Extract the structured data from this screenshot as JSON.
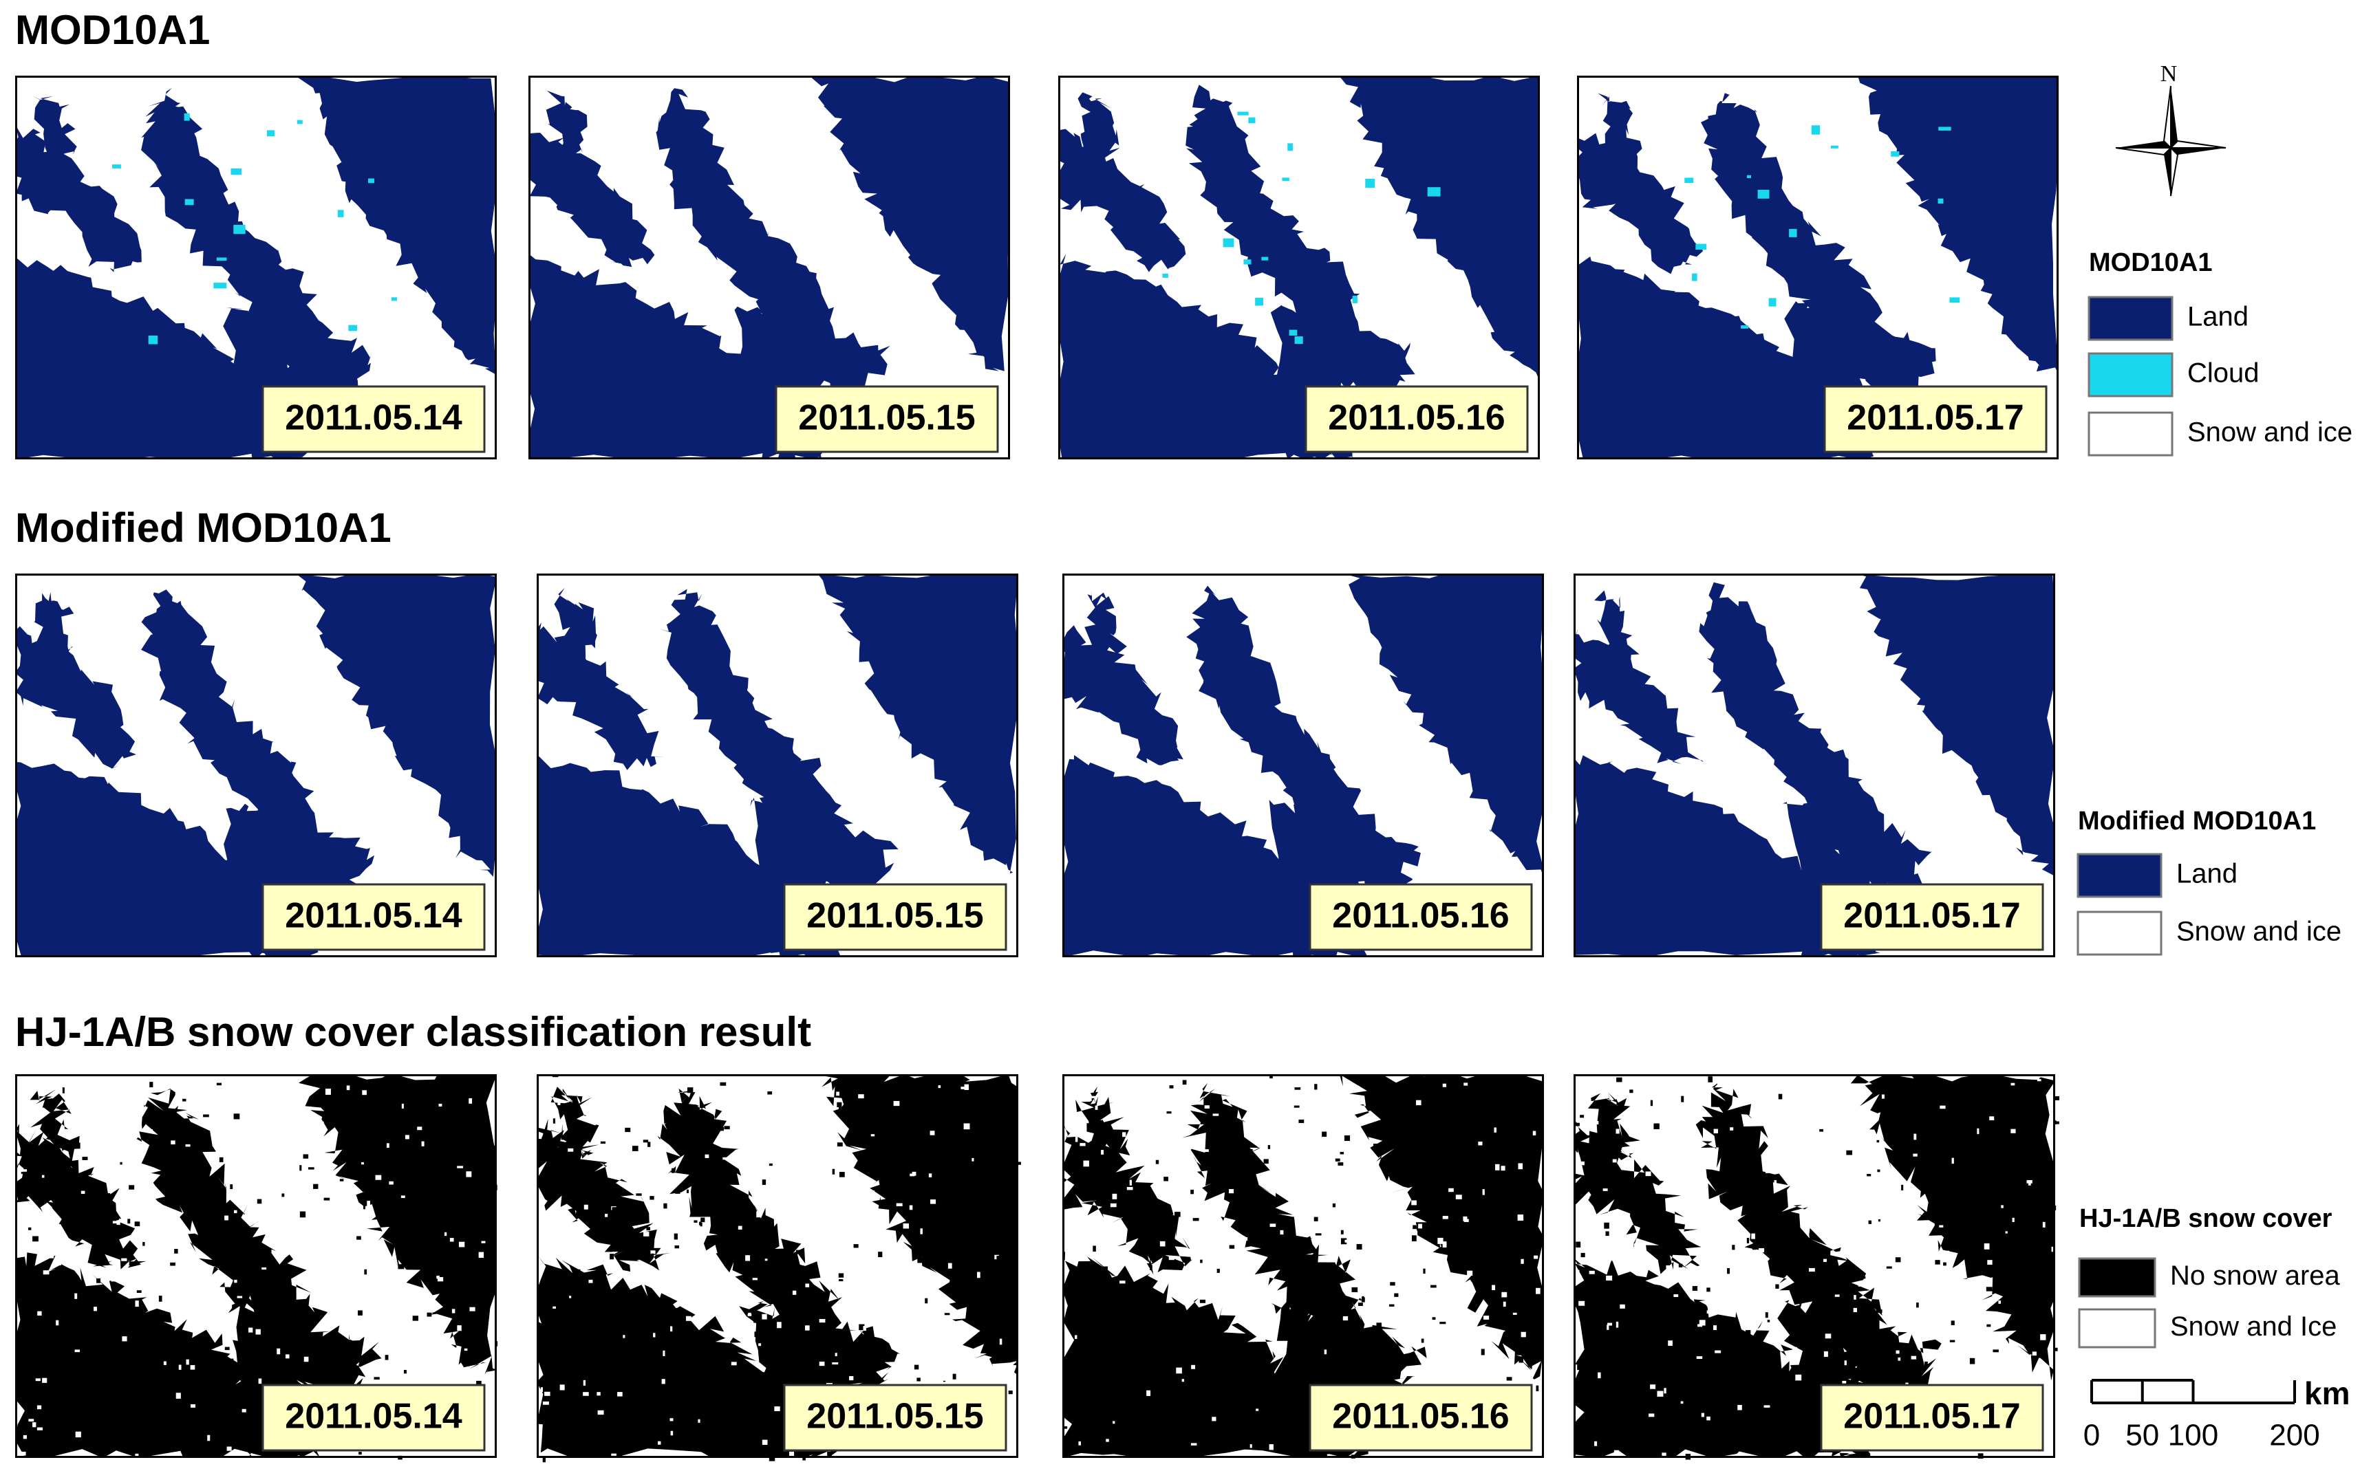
{
  "rows": [
    {
      "title": "MOD10A1",
      "panels": [
        {
          "date": "2011.05.14"
        },
        {
          "date": "2011.05.15"
        },
        {
          "date": "2011.05.16"
        },
        {
          "date": "2011.05.17"
        }
      ]
    },
    {
      "title": "Modified MOD10A1",
      "panels": [
        {
          "date": "2011.05.14"
        },
        {
          "date": "2011.05.15"
        },
        {
          "date": "2011.05.16"
        },
        {
          "date": "2011.05.17"
        }
      ]
    },
    {
      "title": "HJ-1A/B snow cover classification result",
      "panels": [
        {
          "date": "2011.05.14"
        },
        {
          "date": "2011.05.15"
        },
        {
          "date": "2011.05.16"
        },
        {
          "date": "2011.05.17"
        }
      ]
    }
  ],
  "legends": [
    {
      "title": "MOD10A1",
      "items": [
        {
          "label": "Land",
          "color": "#0b1f70"
        },
        {
          "label": "Cloud",
          "color": "#1ad7f0"
        },
        {
          "label": "Snow and ice",
          "color": "#ffffff"
        }
      ]
    },
    {
      "title": "Modified MOD10A1",
      "items": [
        {
          "label": "Land",
          "color": "#0b1f70"
        },
        {
          "label": "Snow and ice",
          "color": "#ffffff"
        }
      ]
    },
    {
      "title": "HJ-1A/B snow cover",
      "items": [
        {
          "label": "No snow area",
          "color": "#000000"
        },
        {
          "label": "Snow and Ice",
          "color": "#ffffff"
        }
      ]
    }
  ],
  "north_label": "N",
  "scale_bar": {
    "unit": "km",
    "ticks": [
      0,
      50,
      100,
      200
    ]
  }
}
